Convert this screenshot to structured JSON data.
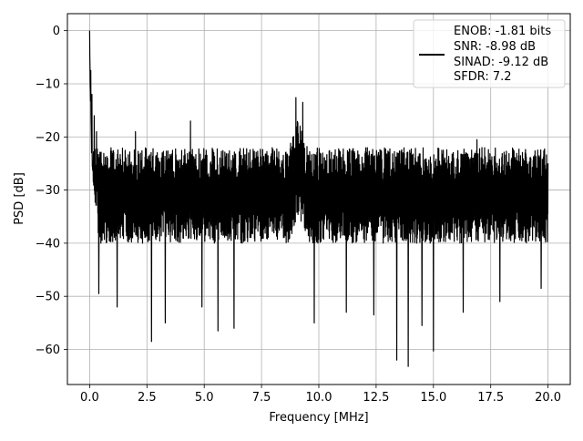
{
  "chart_data": {
    "type": "line",
    "title": "",
    "xlabel": "Frequency [MHz]",
    "ylabel": "PSD [dB]",
    "xlim": [
      -0.97,
      20.97
    ],
    "ylim": [
      -66.6,
      3.2
    ],
    "xticks": [
      0.0,
      2.5,
      5.0,
      7.5,
      10.0,
      12.5,
      15.0,
      17.5,
      20.0
    ],
    "xtick_labels": [
      "0.0",
      "2.5",
      "5.0",
      "7.5",
      "10.0",
      "12.5",
      "15.0",
      "17.5",
      "20.0"
    ],
    "yticks": [
      0,
      -10,
      -20,
      -30,
      -40,
      -50,
      -60
    ],
    "ytick_labels": [
      "0",
      "−10",
      "−20",
      "−30",
      "−40",
      "−50",
      "−60"
    ],
    "grid": true,
    "legend_position": "top-right",
    "legend_lines": [
      "ENOB: -1.81 bits",
      "SNR: -8.98 dB",
      "SINAD: -9.12 dB",
      "SFDR: 7.2"
    ],
    "series_color": "#000000",
    "grid_color": "#b0b0b0",
    "frequency_range_mhz": [
      0,
      20
    ],
    "noise_floor_db": -31,
    "noise_band_db": [
      -40,
      -22
    ],
    "peak_points": [
      {
        "x": 0.0,
        "y": 0.0
      },
      {
        "x": 0.05,
        "y": -7.5
      },
      {
        "x": 0.1,
        "y": -12.0
      },
      {
        "x": 0.2,
        "y": -16.0
      },
      {
        "x": 0.3,
        "y": -19.0
      },
      {
        "x": 2.0,
        "y": -19.0
      },
      {
        "x": 4.4,
        "y": -17.0
      },
      {
        "x": 9.0,
        "y": -12.6
      },
      {
        "x": 9.3,
        "y": -13.5
      },
      {
        "x": 16.9,
        "y": -20.5
      }
    ],
    "dip_points": [
      {
        "x": 0.4,
        "y": -49.5
      },
      {
        "x": 1.2,
        "y": -52.0
      },
      {
        "x": 2.7,
        "y": -58.5
      },
      {
        "x": 3.3,
        "y": -55.0
      },
      {
        "x": 4.9,
        "y": -52.0
      },
      {
        "x": 5.6,
        "y": -56.5
      },
      {
        "x": 6.3,
        "y": -56.0
      },
      {
        "x": 9.8,
        "y": -55.0
      },
      {
        "x": 11.2,
        "y": -53.0
      },
      {
        "x": 12.4,
        "y": -53.5
      },
      {
        "x": 13.4,
        "y": -62.0
      },
      {
        "x": 13.9,
        "y": -63.2
      },
      {
        "x": 14.5,
        "y": -55.5
      },
      {
        "x": 15.0,
        "y": -60.3
      },
      {
        "x": 16.3,
        "y": -53.0
      },
      {
        "x": 17.9,
        "y": -51.0
      },
      {
        "x": 19.7,
        "y": -48.5
      }
    ]
  }
}
